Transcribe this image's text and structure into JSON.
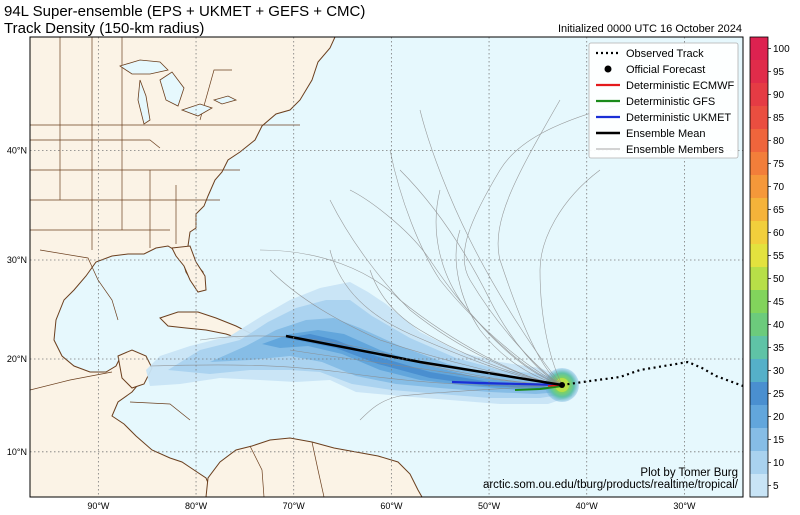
{
  "title": {
    "line1": "94L Super-ensemble (EPS + UKMET + GEFS + CMC)",
    "line2": "Track Density (150-km radius)"
  },
  "initialized": "Initialized 0000 UTC 16 October 2024",
  "credit": {
    "line1": "Plot by Tomer Burg",
    "line2": "arctic.som.ou.edu/tburg/products/realtime/tropical/"
  },
  "legend": [
    {
      "label": "Observed Track",
      "style": "dotted",
      "color": "#000000"
    },
    {
      "label": "Official Forecast",
      "style": "dot",
      "color": "#000000"
    },
    {
      "label": "Deterministic ECMWF",
      "style": "line",
      "color": "#e41a1c"
    },
    {
      "label": "Deterministic GFS",
      "style": "line",
      "color": "#1a8a1a"
    },
    {
      "label": "Deterministic UKMET",
      "style": "line",
      "color": "#1a2fd6"
    },
    {
      "label": "Ensemble Mean",
      "style": "thick",
      "color": "#000000"
    },
    {
      "label": "Ensemble Members",
      "style": "thin",
      "color": "#8a8a8a"
    }
  ],
  "map": {
    "lon_range": [
      -97,
      -24
    ],
    "lat_range": [
      5,
      49
    ],
    "lon_ticks": [
      "90°W",
      "80°W",
      "70°W",
      "60°W",
      "50°W",
      "40°W",
      "30°W"
    ],
    "lat_ticks": [
      "10°N",
      "20°N",
      "30°N",
      "40°N"
    ],
    "ocean_color": "#e6f8fd",
    "land_color": "#fbf3e6"
  },
  "colorbar": {
    "ticks": [
      "5",
      "10",
      "15",
      "20",
      "25",
      "30",
      "35",
      "40",
      "45",
      "50",
      "55",
      "60",
      "65",
      "70",
      "75",
      "80",
      "85",
      "90",
      "95",
      "100"
    ],
    "colors": [
      "#c8e4f6",
      "#a9d2ef",
      "#86bde6",
      "#62a6dc",
      "#4a8fd0",
      "#55b0c8",
      "#5fc3a6",
      "#6ccb7c",
      "#82d45c",
      "#b7df48",
      "#e3e23e",
      "#f2cf3c",
      "#f5b33a",
      "#f5983a",
      "#f27e3a",
      "#ef653c",
      "#ea4e40",
      "#e53b44",
      "#e02c4a",
      "#dd2250"
    ]
  }
}
